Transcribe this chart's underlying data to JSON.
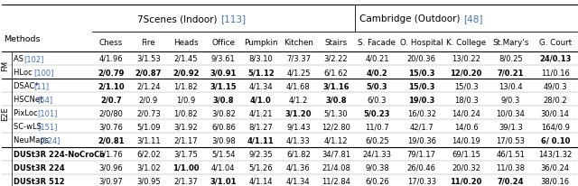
{
  "title_7scenes": "7Scenes (Indoor) ",
  "ref_7scenes": "[113]",
  "title_cambridge": "Cambridge (Outdoor) ",
  "ref_cambridge": "[48]",
  "col_group1": [
    "Chess",
    "Fire",
    "Heads",
    "Office",
    "Pumpkin",
    "Kitchen",
    "Stairs"
  ],
  "col_group2": [
    "S. Facade",
    "O. Hospital",
    "K. College",
    "St.Mary's",
    "G. Court"
  ],
  "methods_col": "Methods",
  "row_label_fm": "FM",
  "row_label_e2e": "E2E",
  "rows": [
    {
      "method": "AS ",
      "ref": "[102]",
      "group": "FM",
      "bold_method": false,
      "data_7s": [
        "4/1.96",
        "3/1.53",
        "2/1.45",
        "9/3.61",
        "8/3.10",
        "7/3.37",
        "3/2.22"
      ],
      "data_cam": [
        "4/0.21",
        "20/0.36",
        "13/0.22",
        "8/0.25",
        "24/0.13"
      ],
      "bold_7s": [
        false,
        false,
        false,
        false,
        false,
        false,
        false
      ],
      "bold_cam": [
        false,
        false,
        false,
        false,
        true
      ]
    },
    {
      "method": "HLoc  ",
      "ref": "[100]",
      "group": "FM",
      "bold_method": false,
      "data_7s": [
        "2/0.79",
        "2/0.87",
        "2/0.92",
        "3/0.91",
        "5/1.12",
        "4/1.25",
        "6/1.62"
      ],
      "data_cam": [
        "4/0.2",
        "15/0.3",
        "12/0.20",
        "7/0.21",
        "11/0.16"
      ],
      "bold_7s": [
        true,
        true,
        true,
        true,
        true,
        false,
        false
      ],
      "bold_cam": [
        true,
        true,
        true,
        true,
        false
      ]
    },
    {
      "method": "DSAC* ",
      "ref": "[11]",
      "group": "E2E",
      "bold_method": false,
      "data_7s": [
        "2/1.10",
        "2/1.24",
        "1/1.82",
        "3/1.15",
        "4/1.34",
        "4/1.68",
        "3/1.16"
      ],
      "data_cam": [
        "5/0.3",
        "15/0.3",
        "15/0.3",
        "13/0.4",
        "49/0.3"
      ],
      "bold_7s": [
        true,
        false,
        false,
        true,
        false,
        false,
        true
      ],
      "bold_cam": [
        true,
        true,
        false,
        false,
        false
      ]
    },
    {
      "method": "HSCNet ",
      "ref": "[54]",
      "group": "E2E",
      "bold_method": false,
      "data_7s": [
        "2/0.7",
        "2/0.9",
        "1/0.9",
        "3/0.8",
        "4/1.0",
        "4/1.2",
        "3/0.8"
      ],
      "data_cam": [
        "6/0.3",
        "19/0.3",
        "18/0.3",
        "9/0.3",
        "28/0.2"
      ],
      "bold_7s": [
        true,
        false,
        false,
        true,
        true,
        false,
        true
      ],
      "bold_cam": [
        false,
        true,
        false,
        false,
        false
      ]
    },
    {
      "method": "PixLoc ",
      "ref": "[101]",
      "group": "E2E",
      "bold_method": false,
      "data_7s": [
        "2/0/80",
        "2/0.73",
        "1/0.82",
        "3/0.82",
        "4/1.21",
        "3/1.20",
        "5/1.30"
      ],
      "data_cam": [
        "5/0.23",
        "16/0.32",
        "14/0.24",
        "10/0.34",
        "30/0.14"
      ],
      "bold_7s": [
        false,
        false,
        false,
        false,
        false,
        true,
        false
      ],
      "bold_cam": [
        true,
        false,
        false,
        false,
        false
      ]
    },
    {
      "method": "SC-wLS ",
      "ref": "[151]",
      "group": "E2E",
      "bold_method": false,
      "data_7s": [
        "3/0.76",
        "5/1.09",
        "3/1.92",
        "6/0.86",
        "8/1.27",
        "9/1.43",
        "12/2.80"
      ],
      "data_cam": [
        "11/0.7",
        "42/1.7",
        "14/0.6",
        "39/1.3",
        "164/0.9"
      ],
      "bold_7s": [
        false,
        false,
        false,
        false,
        false,
        false,
        false
      ],
      "bold_cam": [
        false,
        false,
        false,
        false,
        false
      ]
    },
    {
      "method": "NeuMaps ",
      "ref": "[124]",
      "group": "E2E",
      "bold_method": false,
      "data_7s": [
        "2/0.81",
        "3/1.11",
        "2/1.17",
        "3/0.98",
        "4/1.11",
        "4/1.33",
        "4/1.12"
      ],
      "data_cam": [
        "6/0.25",
        "19/0.36",
        "14/0.19",
        "17/0.53",
        "6/ 0.10"
      ],
      "bold_7s": [
        true,
        false,
        false,
        false,
        true,
        false,
        false
      ],
      "bold_cam": [
        false,
        false,
        false,
        false,
        true
      ]
    },
    {
      "method": "DUSt3R 224-NoCroCo",
      "ref": "",
      "group": "ours",
      "bold_method": true,
      "data_7s": [
        "5/1.76",
        "6/2.02",
        "3/1.75",
        "5/1.54",
        "9/2.35",
        "6/1.82",
        "34/7.81"
      ],
      "data_cam": [
        "24/1.33",
        "79/1.17",
        "69/1.15",
        "46/1.51",
        "143/1.32"
      ],
      "bold_7s": [
        false,
        false,
        false,
        false,
        false,
        false,
        false
      ],
      "bold_cam": [
        false,
        false,
        false,
        false,
        false
      ]
    },
    {
      "method": "DUSt3R 224",
      "ref": "",
      "group": "ours",
      "bold_method": true,
      "data_7s": [
        "3/0.96",
        "3/1.02",
        "1/1.00",
        "4/1.04",
        "5/1.26",
        "4/1.36",
        "21/4.08"
      ],
      "data_cam": [
        "9/0.38",
        "26/0.46",
        "20/0.32",
        "11/0.38",
        "36/0.24"
      ],
      "bold_7s": [
        false,
        false,
        true,
        false,
        false,
        false,
        false
      ],
      "bold_cam": [
        false,
        false,
        false,
        false,
        false
      ]
    },
    {
      "method": "DUSt3R 512",
      "ref": "",
      "group": "ours",
      "bold_method": true,
      "data_7s": [
        "3/0.97",
        "3/0.95",
        "2/1.37",
        "3/1.01",
        "4/1.14",
        "4/1.34",
        "11/2.84"
      ],
      "data_cam": [
        "6/0.26",
        "17/0.33",
        "11/0.20",
        "7/0.24",
        "38/0.16"
      ],
      "bold_7s": [
        false,
        false,
        false,
        true,
        false,
        false,
        false
      ],
      "bold_cam": [
        false,
        false,
        true,
        true,
        false
      ]
    }
  ],
  "blue_color": "#4472C4",
  "background_color": "#FFFFFF"
}
